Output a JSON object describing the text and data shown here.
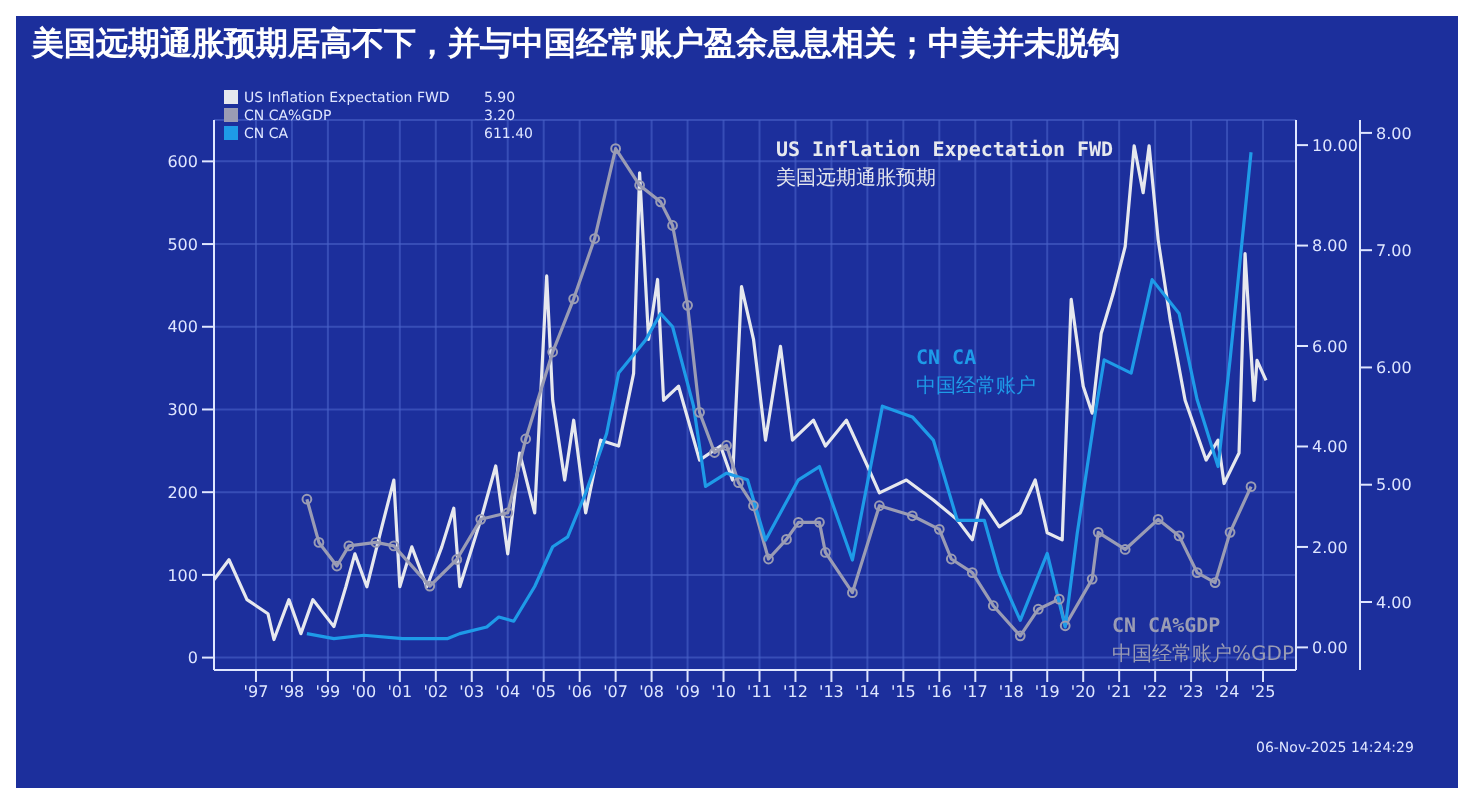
{
  "chart_data": {
    "type": "line",
    "title": "美国远期通胀预期居高不下，并与中国经常账户盈余息息相关；中美并未脱钩",
    "series": [
      {
        "name": "US Inflation Expectation FWD",
        "color": "#e6e8ee",
        "axis": "y3",
        "x": [
          "1996-05",
          "1996-10",
          "1997-04",
          "1997-11",
          "1998-01",
          "1998-06",
          "1998-10",
          "1999-02",
          "1999-09",
          "2000-01",
          "2000-04",
          "2000-08",
          "2001-01",
          "2001-05",
          "2001-07",
          "2001-11",
          "2002-04",
          "2002-09",
          "2003-01",
          "2003-03",
          "2003-10",
          "2004-03",
          "2004-07",
          "2004-11",
          "2005-04",
          "2005-08",
          "2005-10",
          "2006-02",
          "2006-05",
          "2006-09",
          "2007-02",
          "2007-08",
          "2008-01",
          "2008-03",
          "2008-06",
          "2008-09",
          "2008-11",
          "2009-04",
          "2009-11",
          "2010-06",
          "2010-10",
          "2011-01",
          "2011-05",
          "2011-09",
          "2012-02",
          "2012-06",
          "2013-01",
          "2013-05",
          "2013-12",
          "2014-07",
          "2014-11",
          "2015-08",
          "2016-05",
          "2017-01",
          "2017-06",
          "2017-09",
          "2018-03",
          "2018-10",
          "2019-03",
          "2019-07",
          "2019-12",
          "2020-03",
          "2020-07",
          "2020-10",
          "2021-01",
          "2021-05",
          "2021-09",
          "2021-12",
          "2022-03",
          "2022-05",
          "2022-08",
          "2022-12",
          "2023-05",
          "2023-12",
          "2024-04",
          "2024-06",
          "2024-11",
          "2025-01",
          "2025-04",
          "2025-05",
          "2025-08"
        ],
        "values": [
          4.19,
          4.36,
          4.02,
          3.9,
          3.68,
          4.02,
          3.73,
          4.02,
          3.79,
          4.13,
          4.41,
          4.13,
          4.64,
          5.04,
          4.13,
          4.47,
          4.13,
          4.47,
          4.8,
          4.13,
          4.7,
          5.16,
          4.41,
          5.27,
          4.76,
          6.78,
          5.72,
          5.04,
          5.55,
          4.76,
          5.38,
          5.33,
          5.95,
          7.66,
          6.24,
          6.75,
          5.72,
          5.84,
          5.21,
          5.33,
          5.04,
          6.69,
          6.24,
          5.38,
          6.18,
          5.38,
          5.55,
          5.33,
          5.55,
          5.16,
          4.93,
          5.04,
          4.87,
          4.7,
          4.53,
          4.87,
          4.64,
          4.76,
          5.04,
          4.59,
          4.53,
          6.58,
          5.84,
          5.61,
          6.29,
          6.63,
          7.03,
          7.89,
          7.49,
          7.89,
          7.09,
          6.41,
          5.72,
          5.21,
          5.38,
          5.01,
          5.27,
          6.97,
          5.72,
          6.06,
          5.89
        ]
      },
      {
        "name": "CN CA%GDP",
        "color": "#9a9cb4",
        "axis": "y2",
        "marker": "circle",
        "x": [
          "1998-12",
          "1999-04",
          "1999-10",
          "2000-02",
          "2000-11",
          "2001-05",
          "2002-05",
          "2003-02",
          "2003-10",
          "2004-07",
          "2005-01",
          "2005-10",
          "2006-05",
          "2006-12",
          "2007-07",
          "2008-03",
          "2008-10",
          "2009-02",
          "2009-07",
          "2009-11",
          "2010-04",
          "2010-08",
          "2010-12",
          "2011-05",
          "2011-10",
          "2012-04",
          "2012-08",
          "2013-03",
          "2013-05",
          "2014-02",
          "2014-11",
          "2015-10",
          "2016-07",
          "2016-11",
          "2017-06",
          "2018-01",
          "2018-10",
          "2019-04",
          "2019-11",
          "2020-01",
          "2020-10",
          "2020-12",
          "2021-09",
          "2022-08",
          "2023-03",
          "2023-09",
          "2024-03",
          "2024-08",
          "2025-03"
        ],
        "values": [
          2.95,
          2.09,
          1.62,
          2.02,
          2.09,
          2.02,
          1.22,
          1.75,
          2.55,
          2.68,
          4.15,
          5.88,
          6.94,
          8.14,
          9.93,
          9.2,
          8.87,
          8.4,
          6.81,
          4.68,
          3.88,
          4.02,
          3.28,
          2.82,
          1.76,
          2.15,
          2.49,
          2.49,
          1.89,
          1.09,
          2.82,
          2.62,
          2.35,
          1.76,
          1.49,
          0.83,
          0.23,
          0.76,
          0.96,
          0.43,
          1.36,
          2.29,
          1.95,
          2.55,
          2.22,
          1.49,
          1.29,
          2.29,
          3.2
        ]
      },
      {
        "name": "CN CA",
        "color": "#1e9be8",
        "axis": "y",
        "x": [
          "1998-12",
          "1999-09",
          "2000-07",
          "2001-08",
          "2002-11",
          "2003-03",
          "2003-12",
          "2004-04",
          "2004-09",
          "2005-04",
          "2005-10",
          "2006-03",
          "2006-09",
          "2007-04",
          "2007-08",
          "2008-05",
          "2008-10",
          "2009-02",
          "2009-09",
          "2010-01",
          "2010-08",
          "2011-03",
          "2011-09",
          "2012-08",
          "2013-03",
          "2014-02",
          "2014-12",
          "2015-10",
          "2016-05",
          "2017-01",
          "2017-10",
          "2018-03",
          "2018-10",
          "2019-07",
          "2020-01",
          "2020-05",
          "2020-11",
          "2021-02",
          "2021-11",
          "2022-06",
          "2023-03",
          "2023-09",
          "2024-04",
          "2024-08",
          "2025-03"
        ],
        "values": [
          29,
          23,
          27,
          23,
          23,
          29,
          37,
          49,
          44,
          86,
          134,
          146,
          199,
          271,
          344,
          384,
          416,
          400,
          304,
          207,
          223,
          215,
          142,
          215,
          231,
          118,
          304,
          291,
          263,
          166,
          166,
          102,
          45,
          126,
          37,
          150,
          295,
          360,
          344,
          457,
          416,
          312,
          231,
          360,
          611
        ]
      }
    ],
    "xlim": [
      "1996-05",
      "2026-06"
    ],
    "xticks": [
      {
        "value": "1997-07",
        "label": "'97"
      },
      {
        "value": "1998-07",
        "label": "'98"
      },
      {
        "value": "1999-07",
        "label": "'99"
      },
      {
        "value": "2000-07",
        "label": "'00"
      },
      {
        "value": "2001-07",
        "label": "'01"
      },
      {
        "value": "2002-07",
        "label": "'02"
      },
      {
        "value": "2003-07",
        "label": "'03"
      },
      {
        "value": "2004-07",
        "label": "'04"
      },
      {
        "value": "2005-07",
        "label": "'05"
      },
      {
        "value": "2006-07",
        "label": "'06"
      },
      {
        "value": "2007-07",
        "label": "'07"
      },
      {
        "value": "2008-07",
        "label": "'08"
      },
      {
        "value": "2009-07",
        "label": "'09"
      },
      {
        "value": "2010-07",
        "label": "'10"
      },
      {
        "value": "2011-07",
        "label": "'11"
      },
      {
        "value": "2012-07",
        "label": "'12"
      },
      {
        "value": "2013-07",
        "label": "'13"
      },
      {
        "value": "2014-07",
        "label": "'14"
      },
      {
        "value": "2015-07",
        "label": "'15"
      },
      {
        "value": "2016-07",
        "label": "'16"
      },
      {
        "value": "2017-07",
        "label": "'17"
      },
      {
        "value": "2018-07",
        "label": "'18"
      },
      {
        "value": "2019-07",
        "label": "'19"
      },
      {
        "value": "2020-07",
        "label": "'20"
      },
      {
        "value": "2021-07",
        "label": "'21"
      },
      {
        "value": "2022-07",
        "label": "'22"
      },
      {
        "value": "2023-07",
        "label": "'23"
      },
      {
        "value": "2024-07",
        "label": "'24"
      },
      {
        "value": "2025-07",
        "label": "'25"
      }
    ],
    "ylim": [
      -15,
      650
    ],
    "yticks": [
      0,
      100,
      200,
      300,
      400,
      500,
      600
    ],
    "y2lim": [
      -0.45,
      10.5
    ],
    "y2ticks": [
      {
        "value": 0,
        "label": "0.00"
      },
      {
        "value": 2,
        "label": "2.00"
      },
      {
        "value": 4,
        "label": "4.00"
      },
      {
        "value": 6,
        "label": "6.00"
      },
      {
        "value": 8,
        "label": "8.00"
      },
      {
        "value": 10,
        "label": "10.00"
      }
    ],
    "y3lim": [
      3.42,
      8.11
    ],
    "y3ticks": [
      {
        "value": 4,
        "label": "4.00"
      },
      {
        "value": 5,
        "label": "5.00"
      },
      {
        "value": 6,
        "label": "6.00"
      },
      {
        "value": 7,
        "label": "7.00"
      },
      {
        "value": 8,
        "label": "8.00"
      }
    ],
    "grid": true,
    "legend": "top left",
    "annotations": [
      "美国远期通胀预期",
      "中国经常账户%GDP",
      "中国经常账户",
      "5.90",
      "3.20",
      "611.40",
      "06-Nov-2025 14:24:29"
    ]
  }
}
